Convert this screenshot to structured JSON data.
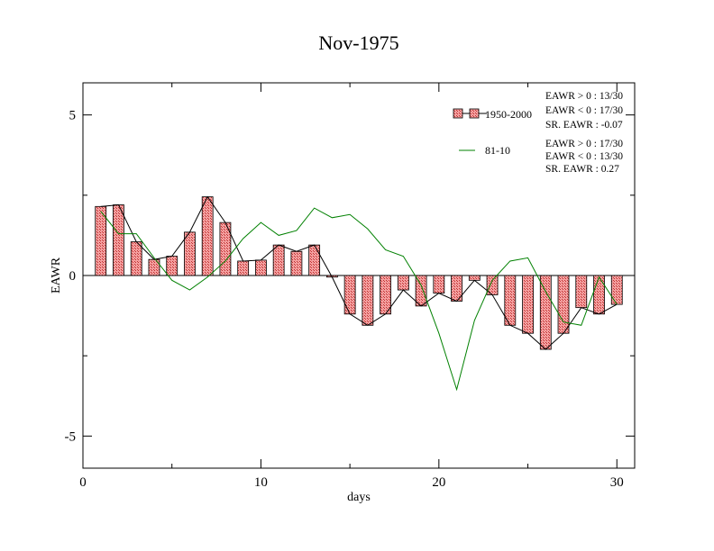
{
  "chart_data": {
    "type": "bar",
    "title": "Nov-1975",
    "xlabel": "days",
    "ylabel": "EAWR",
    "xlim": [
      0,
      31
    ],
    "ylim": [
      -6,
      6
    ],
    "xticks": [
      0,
      10,
      20,
      30
    ],
    "xtick_labels": [
      "0",
      "10",
      "20",
      "30"
    ],
    "yticks": [
      -5,
      0,
      5
    ],
    "ytick_labels": [
      "-5",
      "0",
      "5"
    ],
    "grid": false,
    "legend_position": "top-right",
    "colors": {
      "bar_fill": "#f4a0a0",
      "bar_hatch": "#c03030",
      "bar_outline": "#000000",
      "bar_line": "#000000",
      "series2_line": "#008000"
    },
    "series": [
      {
        "name": "1950-2000",
        "style": "bars-with-line",
        "x": [
          1,
          2,
          3,
          4,
          5,
          6,
          7,
          8,
          9,
          10,
          11,
          12,
          13,
          14,
          15,
          16,
          17,
          18,
          19,
          20,
          21,
          22,
          23,
          24,
          25,
          26,
          27,
          28,
          29,
          30
        ],
        "values": [
          2.15,
          2.2,
          1.05,
          0.5,
          0.6,
          1.35,
          2.45,
          1.65,
          0.45,
          0.48,
          0.95,
          0.75,
          0.95,
          -0.05,
          -1.2,
          -1.55,
          -1.2,
          -0.45,
          -0.95,
          -0.55,
          -0.8,
          -0.15,
          -0.6,
          -1.55,
          -1.8,
          -2.3,
          -1.8,
          -1.0,
          -1.2,
          -0.9
        ]
      },
      {
        "name": "81-10",
        "style": "line",
        "x": [
          1,
          2,
          3,
          4,
          5,
          6,
          7,
          8,
          9,
          10,
          11,
          12,
          13,
          14,
          15,
          16,
          17,
          18,
          19,
          20,
          21,
          22,
          23,
          24,
          25,
          26,
          27,
          28,
          29,
          30
        ],
        "values": [
          2.0,
          1.3,
          1.3,
          0.55,
          -0.15,
          -0.45,
          -0.05,
          0.45,
          1.15,
          1.65,
          1.25,
          1.4,
          2.1,
          1.8,
          1.9,
          1.45,
          0.8,
          0.6,
          -0.3,
          -1.8,
          -3.55,
          -1.4,
          -0.15,
          0.45,
          0.55,
          -0.5,
          -1.45,
          -1.55,
          -0.05,
          -0.9
        ]
      }
    ],
    "annotations": {
      "series1_stats": [
        "EAWR > 0 : 13/30",
        "EAWR < 0 : 17/30",
        "SR. EAWR : -0.07"
      ],
      "series2_stats": [
        "EAWR > 0 : 17/30",
        "EAWR < 0 : 13/30",
        "SR. EAWR :  0.27"
      ]
    }
  }
}
